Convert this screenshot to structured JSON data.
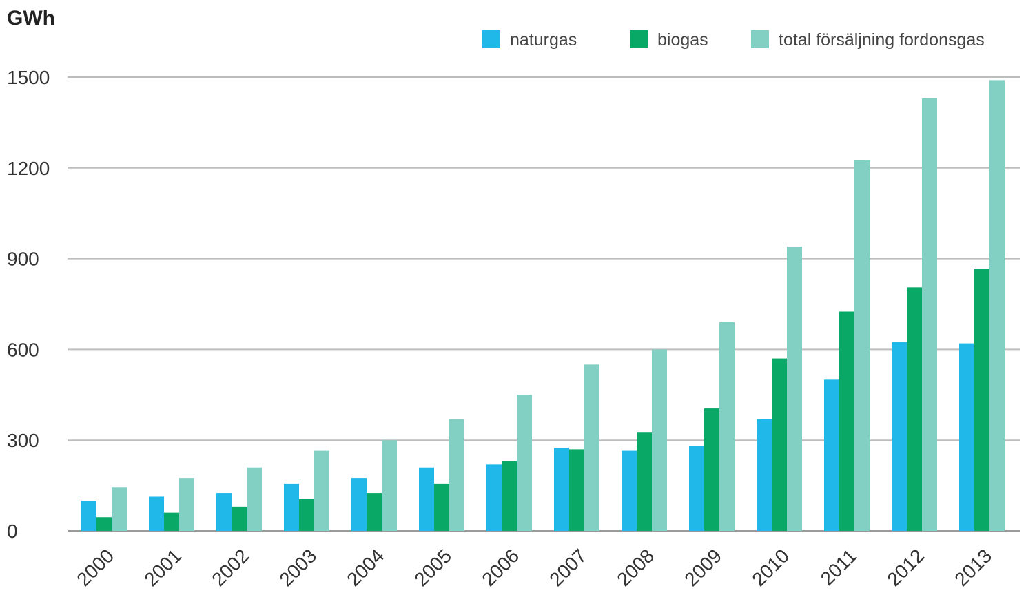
{
  "chart_data": {
    "type": "bar",
    "unit_label": "GWh",
    "title": "",
    "xlabel": "",
    "ylabel": "GWh",
    "ylim": [
      0,
      1500
    ],
    "yticks": [
      0,
      300,
      600,
      900,
      1200,
      1500
    ],
    "grid": true,
    "legend_position": "top-right",
    "categories": [
      "2000",
      "2001",
      "2002",
      "2003",
      "2004",
      "2005",
      "2006",
      "2007",
      "2008",
      "2009",
      "2010",
      "2011",
      "2012",
      "2013"
    ],
    "series": [
      {
        "name": "naturgas",
        "color": "#1fb8e8",
        "values": [
          100,
          115,
          125,
          155,
          175,
          210,
          220,
          275,
          265,
          280,
          370,
          500,
          625,
          620
        ]
      },
      {
        "name": "biogas",
        "color": "#0aa866",
        "values": [
          45,
          60,
          80,
          105,
          125,
          155,
          230,
          270,
          325,
          405,
          570,
          725,
          805,
          865
        ]
      },
      {
        "name": "total försäljning fordonsgas",
        "color": "#82cfc4",
        "values": [
          145,
          175,
          210,
          265,
          300,
          370,
          450,
          550,
          600,
          690,
          940,
          1225,
          1430,
          1490
        ]
      }
    ]
  }
}
